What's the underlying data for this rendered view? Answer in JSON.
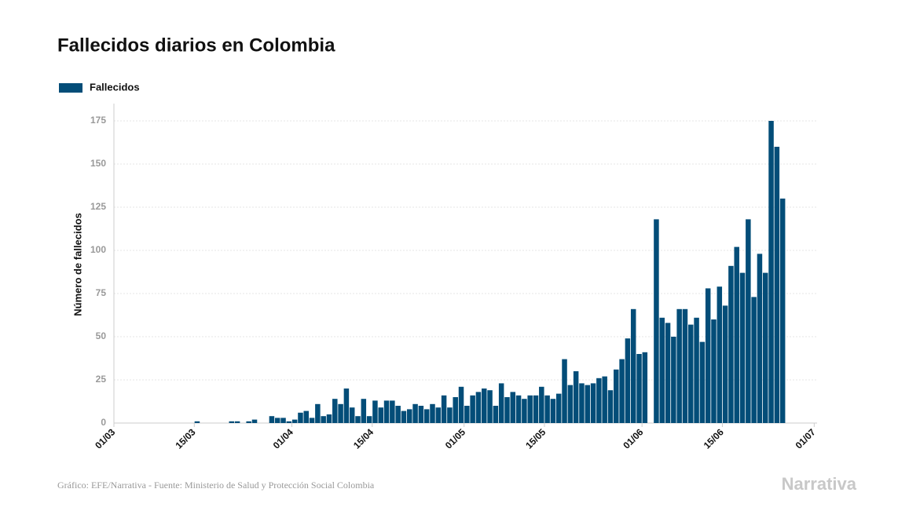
{
  "chart_data": {
    "type": "bar",
    "title": "Fallecidos diarios en Colombia",
    "ylabel": "Número de fallecidos",
    "source": "Gráfico: EFE/Narrativa - Fuente: Ministerio de Salud y Protección Social Colombia",
    "brand": "Narrativa",
    "legend": "top-left",
    "grid": true,
    "ylim": [
      0,
      185
    ],
    "yticks": [
      0,
      25,
      50,
      75,
      100,
      125,
      150,
      175
    ],
    "xticks": [
      "01/03",
      "15/03",
      "01/04",
      "15/04",
      "01/05",
      "15/05",
      "01/06",
      "15/06",
      "01/07"
    ],
    "x": [
      "01/03",
      "02/03",
      "03/03",
      "04/03",
      "05/03",
      "06/03",
      "07/03",
      "08/03",
      "09/03",
      "10/03",
      "11/03",
      "12/03",
      "13/03",
      "14/03",
      "15/03",
      "16/03",
      "17/03",
      "18/03",
      "19/03",
      "20/03",
      "21/03",
      "22/03",
      "23/03",
      "24/03",
      "25/03",
      "26/03",
      "27/03",
      "28/03",
      "29/03",
      "30/03",
      "31/03",
      "01/04",
      "02/04",
      "03/04",
      "04/04",
      "05/04",
      "06/04",
      "07/04",
      "08/04",
      "09/04",
      "10/04",
      "11/04",
      "12/04",
      "13/04",
      "14/04",
      "15/04",
      "16/04",
      "17/04",
      "18/04",
      "19/04",
      "20/04",
      "21/04",
      "22/04",
      "23/04",
      "24/04",
      "25/04",
      "26/04",
      "27/04",
      "28/04",
      "29/04",
      "30/04",
      "01/05",
      "02/05",
      "03/05",
      "04/05",
      "05/05",
      "06/05",
      "07/05",
      "08/05",
      "09/05",
      "10/05",
      "11/05",
      "12/05",
      "13/05",
      "14/05",
      "15/05",
      "16/05",
      "17/05",
      "18/05",
      "19/05",
      "20/05",
      "21/05",
      "22/05",
      "23/05",
      "24/05",
      "25/05",
      "26/05",
      "27/05",
      "28/05",
      "29/05",
      "30/05",
      "31/05",
      "01/06",
      "02/06",
      "03/06",
      "04/06",
      "05/06",
      "06/06",
      "07/06",
      "08/06",
      "09/06",
      "10/06",
      "11/06",
      "12/06",
      "13/06",
      "14/06",
      "15/06",
      "16/06",
      "17/06",
      "18/06",
      "19/06",
      "20/06",
      "21/06",
      "22/06",
      "23/06",
      "24/06",
      "25/06",
      "26/06",
      "27/06",
      "28/06",
      "29/06",
      "30/06"
    ],
    "series": [
      {
        "name": "Fallecidos",
        "color": "#034d78",
        "values": [
          null,
          null,
          null,
          null,
          null,
          null,
          0,
          0,
          0,
          0,
          0,
          0,
          0,
          0,
          1,
          0,
          0,
          0,
          0,
          0,
          1,
          1,
          0,
          1,
          2,
          0,
          0,
          4,
          3,
          3,
          1,
          2,
          6,
          7,
          3,
          11,
          4,
          5,
          14,
          11,
          20,
          9,
          4,
          14,
          4,
          13,
          9,
          13,
          13,
          10,
          7,
          8,
          11,
          10,
          8,
          11,
          9,
          16,
          9,
          15,
          21,
          10,
          16,
          18,
          20,
          19,
          10,
          23,
          15,
          18,
          16,
          14,
          16,
          16,
          21,
          16,
          14,
          17,
          37,
          22,
          30,
          23,
          22,
          23,
          26,
          27,
          19,
          31,
          37,
          49,
          66,
          40,
          41,
          null,
          118,
          61,
          58,
          50,
          66,
          66,
          57,
          61,
          47,
          78,
          60,
          79,
          68,
          91,
          102,
          87,
          118,
          73,
          98,
          87,
          175,
          160,
          130,
          null,
          null,
          null,
          null,
          null
        ]
      }
    ]
  }
}
